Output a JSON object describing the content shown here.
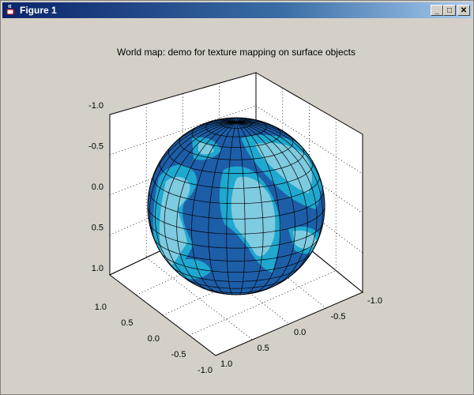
{
  "window": {
    "title": "Figure 1",
    "icons": {
      "app": "java-cup-icon",
      "minimize": "minimize-icon",
      "maximize": "maximize-icon",
      "close": "close-icon"
    },
    "controls": {
      "minimize_glyph": "_",
      "maximize_glyph": "□",
      "close_glyph": "✕"
    }
  },
  "figure": {
    "title": "World map: demo for texture mapping on surface objects",
    "axes": {
      "z_ticks": [
        "-1.0",
        "-0.5",
        "0.0",
        "0.5",
        "1.0"
      ],
      "x_ticks": [
        "1.0",
        "0.5",
        "0.0",
        "-0.5",
        "-1.0"
      ],
      "y_ticks": [
        "1.0",
        "0.5",
        "0.0",
        "-0.5",
        "-1.0"
      ]
    },
    "colors": {
      "ocean": "#1d5ea8",
      "shelf": "#1fa8d0",
      "land": "#7fcbe0",
      "grid": "#000000"
    }
  }
}
